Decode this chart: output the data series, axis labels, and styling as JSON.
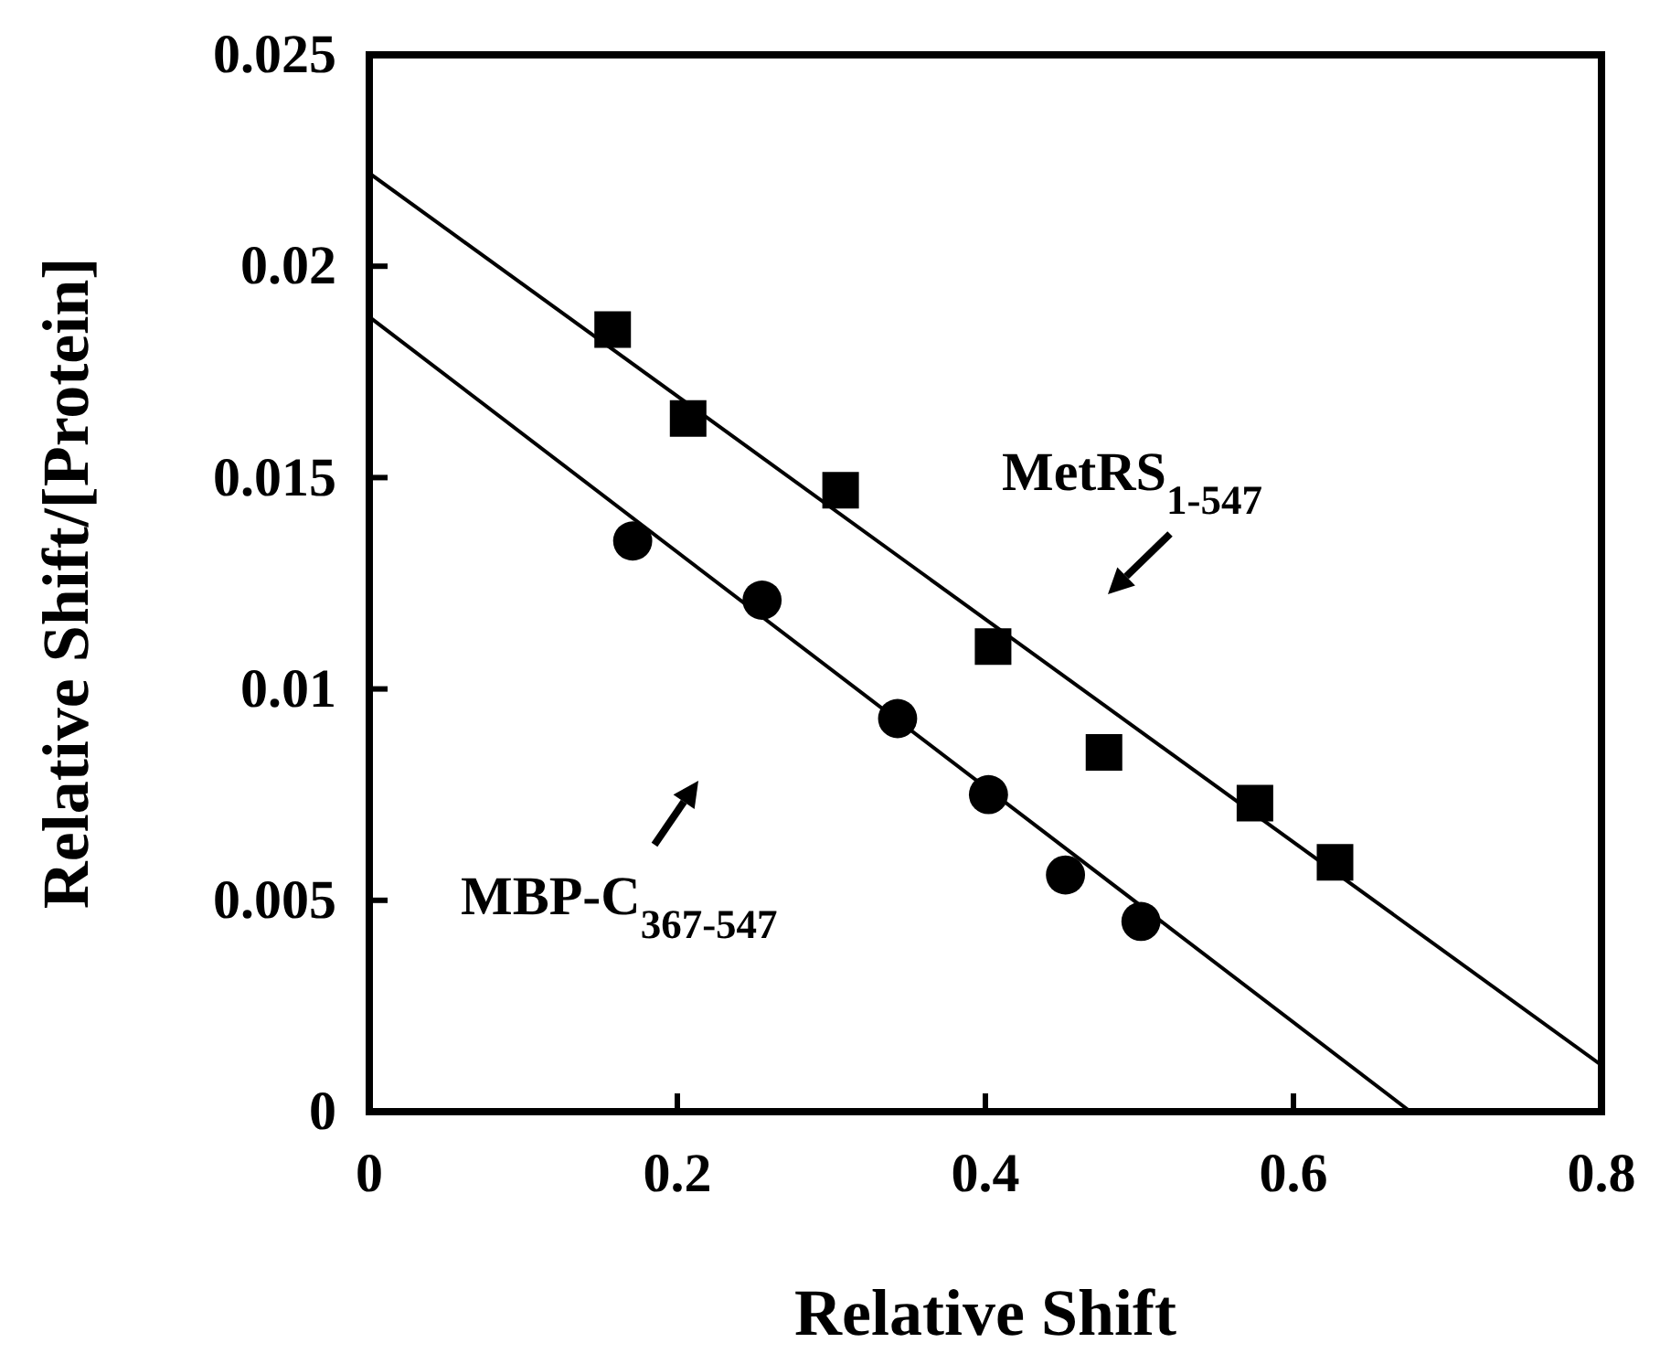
{
  "chart_data": {
    "type": "scatter",
    "xlabel": "Relative Shift",
    "ylabel": "Relative Shift/[Protein]",
    "xlim": [
      0,
      0.8
    ],
    "ylim": [
      0,
      0.025
    ],
    "xticks": [
      0,
      0.2,
      0.4,
      0.6,
      0.8
    ],
    "yticks": [
      0,
      0.005,
      0.01,
      0.015,
      0.02,
      0.025
    ],
    "grid": false,
    "annotations": [
      "MetRS$_{1-547}$",
      "MBP-C$_{367-547}$"
    ],
    "series": [
      {
        "color": "#000000",
        "marker": "square",
        "x": [
          0.158,
          0.207,
          0.306,
          0.405,
          0.477,
          0.575,
          0.627
        ],
        "values": [
          0.0185,
          0.0164,
          0.0147,
          0.011,
          0.0085,
          0.0073,
          0.0059
        ]
      },
      {
        "color": "#000000",
        "marker": "circle",
        "x": [
          0.171,
          0.255,
          0.343,
          0.402,
          0.452,
          0.501
        ],
        "values": [
          0.0135,
          0.0121,
          0.0093,
          0.0075,
          0.0056,
          0.0045
        ]
      },
      {
        "type": "line",
        "color": "#000000",
        "line_style": "solid",
        "marker": "none",
        "x": [
          0,
          0.8
        ],
        "values": [
          0.0222,
          0.0011
        ]
      },
      {
        "type": "line",
        "color": "#000000",
        "line_style": "solid",
        "marker": "none",
        "x": [
          0,
          0.676
        ],
        "values": [
          0.0188,
          0
        ]
      }
    ]
  }
}
